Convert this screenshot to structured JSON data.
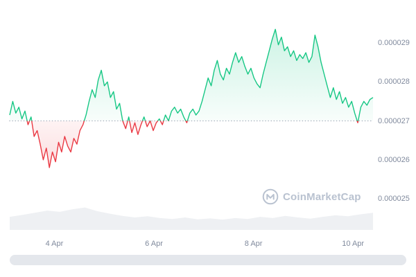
{
  "watermark": {
    "text": "CoinMarketCap"
  },
  "colors": {
    "up": "#16c784",
    "down": "#ea3943",
    "baseline_dots": "#aab2bf",
    "axis_text": "#808a9d",
    "volume_fill": "#eef0f3",
    "scrollbar": "#e4e7ec",
    "watermark_text": "#b9c2d0"
  },
  "chart_data": {
    "type": "line",
    "title": "",
    "xlabel": "",
    "ylabel": "",
    "legend": "none",
    "grid": "off",
    "baseline": 2.7e-05,
    "ylim": [
      2.48e-05,
      2.96e-05
    ],
    "y_ticks": [
      {
        "value": 2.9e-05,
        "label": "0.000029"
      },
      {
        "value": 2.8e-05,
        "label": "0.000028"
      },
      {
        "value": 2.7e-05,
        "label": "0.000027"
      },
      {
        "value": 2.6e-05,
        "label": "0.000026"
      },
      {
        "value": 2.5e-05,
        "label": "0.000025"
      }
    ],
    "x_ticks": [
      {
        "pos": 0.123,
        "label": "4 Apr"
      },
      {
        "pos": 0.397,
        "label": "6 Apr"
      },
      {
        "pos": 0.671,
        "label": "8 Apr"
      },
      {
        "pos": 0.945,
        "label": "10 Apr"
      }
    ],
    "series": [
      {
        "name": "price",
        "values": [
          2.715e-05,
          2.75e-05,
          2.72e-05,
          2.735e-05,
          2.705e-05,
          2.725e-05,
          2.69e-05,
          2.71e-05,
          2.66e-05,
          2.675e-05,
          2.64e-05,
          2.6e-05,
          2.63e-05,
          2.58e-05,
          2.62e-05,
          2.595e-05,
          2.645e-05,
          2.62e-05,
          2.66e-05,
          2.635e-05,
          2.62e-05,
          2.655e-05,
          2.64e-05,
          2.675e-05,
          2.69e-05,
          2.715e-05,
          2.75e-05,
          2.78e-05,
          2.76e-05,
          2.805e-05,
          2.83e-05,
          2.79e-05,
          2.8e-05,
          2.76e-05,
          2.775e-05,
          2.73e-05,
          2.745e-05,
          2.7e-05,
          2.68e-05,
          2.71e-05,
          2.67e-05,
          2.695e-05,
          2.665e-05,
          2.69e-05,
          2.71e-05,
          2.685e-05,
          2.7e-05,
          2.675e-05,
          2.695e-05,
          2.705e-05,
          2.69e-05,
          2.715e-05,
          2.7e-05,
          2.725e-05,
          2.735e-05,
          2.72e-05,
          2.73e-05,
          2.71e-05,
          2.695e-05,
          2.72e-05,
          2.73e-05,
          2.715e-05,
          2.725e-05,
          2.75e-05,
          2.78e-05,
          2.81e-05,
          2.79e-05,
          2.83e-05,
          2.855e-05,
          2.82e-05,
          2.805e-05,
          2.835e-05,
          2.82e-05,
          2.85e-05,
          2.875e-05,
          2.85e-05,
          2.865e-05,
          2.84e-05,
          2.82e-05,
          2.835e-05,
          2.81e-05,
          2.795e-05,
          2.785e-05,
          2.82e-05,
          2.85e-05,
          2.88e-05,
          2.91e-05,
          2.935e-05,
          2.895e-05,
          2.915e-05,
          2.88e-05,
          2.89e-05,
          2.865e-05,
          2.88e-05,
          2.855e-05,
          2.87e-05,
          2.86e-05,
          2.875e-05,
          2.85e-05,
          2.865e-05,
          2.92e-05,
          2.89e-05,
          2.85e-05,
          2.82e-05,
          2.79e-05,
          2.76e-05,
          2.785e-05,
          2.755e-05,
          2.775e-05,
          2.745e-05,
          2.76e-05,
          2.735e-05,
          2.75e-05,
          2.72e-05,
          2.695e-05,
          2.735e-05,
          2.75e-05,
          2.74e-05,
          2.755e-05,
          2.76e-05
        ]
      }
    ],
    "volume_relative": [
      0.42,
      0.48,
      0.55,
      0.62,
      0.58,
      0.66,
      0.72,
      0.6,
      0.52,
      0.45,
      0.4,
      0.44,
      0.38,
      0.35,
      0.4,
      0.34,
      0.37,
      0.33,
      0.38,
      0.35,
      0.42,
      0.38,
      0.45,
      0.4,
      0.36,
      0.42,
      0.47,
      0.44,
      0.5,
      0.55
    ]
  }
}
